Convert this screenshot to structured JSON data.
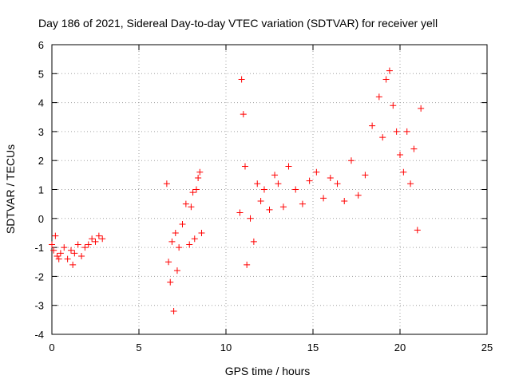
{
  "chart_data": {
    "type": "scatter",
    "title": "Day 186 of 2021, Sidereal Day-to-day VTEC variation (SDTVAR) for receiver yell",
    "xlabel": "GPS time / hours",
    "ylabel": "SDTVAR / TECUs",
    "xlim": [
      0,
      25
    ],
    "ylim": [
      -4,
      6
    ],
    "xticks": [
      "0",
      "5",
      "10",
      "15",
      "20",
      "25"
    ],
    "yticks": [
      "-4",
      "-3",
      "-2",
      "-1",
      "0",
      "1",
      "2",
      "3",
      "4",
      "5",
      "6"
    ],
    "grid": true,
    "marker": "+",
    "color": "#ff0000",
    "series": [
      {
        "name": "SDTVAR",
        "x": [
          0.0,
          0.1,
          0.2,
          0.3,
          0.4,
          0.5,
          0.7,
          0.9,
          1.1,
          1.2,
          1.3,
          1.5,
          1.7,
          1.9,
          2.1,
          2.3,
          2.5,
          2.7,
          2.9,
          6.6,
          6.7,
          6.8,
          6.9,
          7.0,
          7.1,
          7.2,
          7.3,
          7.5,
          7.7,
          7.9,
          8.0,
          8.1,
          8.2,
          8.3,
          8.4,
          8.5,
          8.6,
          10.8,
          10.9,
          11.0,
          11.1,
          11.2,
          11.4,
          11.6,
          11.8,
          12.0,
          12.2,
          12.5,
          12.8,
          13.0,
          13.3,
          13.6,
          14.0,
          14.4,
          14.8,
          15.2,
          15.6,
          16.0,
          16.4,
          16.8,
          17.2,
          17.6,
          18.0,
          18.4,
          18.8,
          19.0,
          19.2,
          19.4,
          19.6,
          19.8,
          20.0,
          20.2,
          20.4,
          20.6,
          20.8,
          21.0,
          21.2
        ],
        "y": [
          -0.9,
          -1.1,
          -0.6,
          -1.3,
          -1.4,
          -1.2,
          -1.0,
          -1.4,
          -1.1,
          -1.6,
          -1.2,
          -0.9,
          -1.3,
          -1.0,
          -0.9,
          -0.7,
          -0.8,
          -0.6,
          -0.7,
          1.2,
          -1.5,
          -2.2,
          -0.8,
          -3.2,
          -0.5,
          -1.8,
          -1.0,
          -0.2,
          0.5,
          -0.9,
          0.4,
          0.9,
          -0.7,
          1.0,
          1.4,
          1.6,
          -0.5,
          0.2,
          4.8,
          3.6,
          1.8,
          -1.6,
          0.0,
          -0.8,
          1.2,
          0.6,
          1.0,
          0.3,
          1.5,
          1.2,
          0.4,
          1.8,
          1.0,
          0.5,
          1.3,
          1.6,
          0.7,
          1.4,
          1.2,
          0.6,
          2.0,
          0.8,
          1.5,
          3.2,
          4.2,
          2.8,
          4.8,
          5.1,
          3.9,
          3.0,
          2.2,
          1.6,
          3.0,
          1.2,
          2.4,
          -0.4,
          3.8
        ]
      }
    ]
  }
}
